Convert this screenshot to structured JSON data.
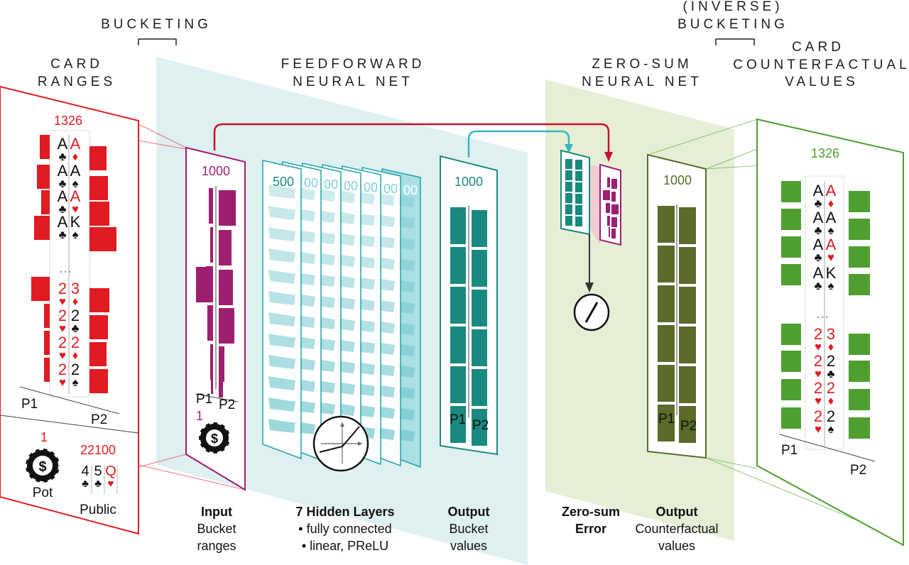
{
  "headers": {
    "bucketing": "BUCKETING",
    "card_ranges": [
      "CARD",
      "RANGES"
    ],
    "feedforward": [
      "FEEDFORWARD",
      "NEURAL NET"
    ],
    "zero_sum_net": [
      "ZERO-SUM",
      "NEURAL NET"
    ],
    "inverse_bucketing": [
      "(INVERSE)",
      "BUCKETING"
    ],
    "card_cf_values": [
      "CARD",
      "COUNTERFACTUAL",
      "VALUES"
    ]
  },
  "left_panel": {
    "count": "1326",
    "hands": [
      [
        "A♣",
        "A♦"
      ],
      [
        "A♣",
        "A♠"
      ],
      [
        "A♣",
        "A♥"
      ],
      [
        "A♣",
        "K♠"
      ],
      [
        "2♥",
        "3♦"
      ],
      [
        "2♥",
        "2♣"
      ],
      [
        "2♥",
        "2♦"
      ],
      [
        "2♥",
        "2♠"
      ]
    ],
    "ellipsis": "...",
    "p1": "P1",
    "p2": "P2",
    "pot_value": "1",
    "pot_label": "Pot",
    "public_count": "22100",
    "public_cards": [
      "4♣",
      "5♣",
      "Q♥"
    ],
    "public_label": "Public"
  },
  "input_panel": {
    "count": "1000",
    "p1": "P1",
    "p2": "P2",
    "pot_value": "1"
  },
  "hidden_layers": {
    "count": "500",
    "partial": [
      "00",
      "00",
      "00",
      "00",
      "00"
    ]
  },
  "output_panel": {
    "count": "1000",
    "p1": "P1",
    "p2": "P2"
  },
  "cf_output_panel": {
    "count": "1000",
    "p1": "P1",
    "p2": "P2"
  },
  "right_panel": {
    "count": "1326",
    "hands": [
      [
        "A♣",
        "A♦"
      ],
      [
        "A♣",
        "A♠"
      ],
      [
        "A♣",
        "A♥"
      ],
      [
        "A♣",
        "K♠"
      ],
      [
        "2♥",
        "3♦"
      ],
      [
        "2♥",
        "2♣"
      ],
      [
        "2♥",
        "2♦"
      ],
      [
        "2♥",
        "2♠"
      ]
    ],
    "ellipsis": "...",
    "p1": "P1",
    "p2": "P2"
  },
  "captions": {
    "input": {
      "bold": "Input",
      "lines": [
        "Bucket",
        "ranges"
      ]
    },
    "hidden": {
      "bold": "7 Hidden Layers",
      "lines": [
        "• fully connected",
        "• linear, PReLU"
      ]
    },
    "output": {
      "bold": "Output",
      "lines": [
        "Bucket",
        "values"
      ]
    },
    "zero_sum": {
      "bold": [
        "Zero-sum",
        "Error"
      ]
    },
    "cf_output": {
      "bold": "Output",
      "lines": [
        "Counterfactual",
        "values"
      ]
    }
  },
  "colors": {
    "red": "#e01b22",
    "purple": "#9e1f6f",
    "teal": "#1a8a80",
    "light_teal": "#dff0f1",
    "olive": "#5a6b2a",
    "light_green": "#e6efd6",
    "green": "#4e9f2f"
  },
  "icons": [
    "poker-chip-icon",
    "prelu-graph-icon",
    "subtract-icon"
  ]
}
